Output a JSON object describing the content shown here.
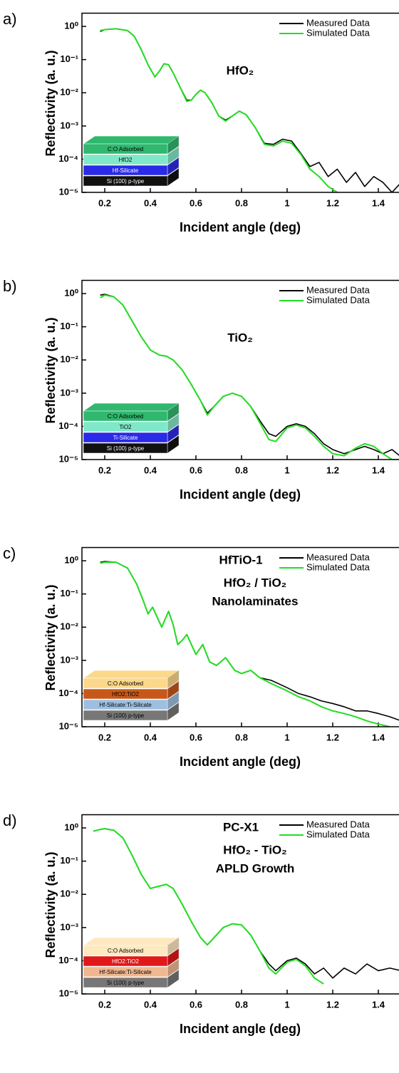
{
  "chart_data": [
    {
      "type": "line",
      "panel_label": "a)",
      "x_label": "Incident angle (deg)",
      "y_label": "Reflectivity (a. u.)",
      "log_y": true,
      "legend": "upper right",
      "annotations": [
        "HfO₂"
      ],
      "xlim": [
        0.1,
        1.5
      ],
      "xticks": [
        0.2,
        0.4,
        0.6,
        0.8,
        1.0,
        1.2,
        1.4
      ],
      "ylim": [
        1e-05,
        2.5
      ],
      "yticks": [
        {
          "value": 1,
          "label": "10⁰"
        },
        {
          "value": 0.1,
          "label": "10⁻¹"
        },
        {
          "value": 0.01,
          "label": "10⁻²"
        },
        {
          "value": 0.001,
          "label": "10⁻³"
        },
        {
          "value": 0.0001,
          "label": "10⁻⁴"
        },
        {
          "value": 1e-05,
          "label": "10⁻⁵"
        }
      ],
      "x": [
        0.18,
        0.2,
        0.25,
        0.3,
        0.33,
        0.36,
        0.39,
        0.42,
        0.44,
        0.46,
        0.48,
        0.5,
        0.53,
        0.56,
        0.58,
        0.6,
        0.62,
        0.64,
        0.67,
        0.7,
        0.73,
        0.76,
        0.79,
        0.82,
        0.86,
        0.9,
        0.94,
        0.98,
        1.02,
        1.06,
        1.1,
        1.14,
        1.18,
        1.22,
        1.26,
        1.3,
        1.34,
        1.38,
        1.42,
        1.46,
        1.5
      ],
      "series": [
        {
          "name": "Measured Data",
          "color": "#000000",
          "values": [
            0.7,
            0.8,
            0.85,
            0.75,
            0.5,
            0.2,
            0.07,
            0.03,
            0.045,
            0.075,
            0.07,
            0.04,
            0.015,
            0.006,
            0.006,
            0.009,
            0.012,
            0.01,
            0.005,
            0.002,
            0.0015,
            0.002,
            0.0028,
            0.0022,
            0.0009,
            0.0003,
            0.00028,
            0.0004,
            0.00035,
            0.00015,
            6e-05,
            8e-05,
            3e-05,
            5e-05,
            2e-05,
            4e-05,
            1.5e-05,
            3e-05,
            2e-05,
            1e-05,
            2e-05
          ]
        },
        {
          "name": "Simulated Data",
          "color": "#22dd22",
          "values": [
            0.75,
            0.8,
            0.85,
            0.75,
            0.5,
            0.2,
            0.07,
            0.03,
            0.045,
            0.075,
            0.07,
            0.04,
            0.015,
            0.0055,
            0.006,
            0.009,
            0.012,
            0.01,
            0.005,
            0.002,
            0.0014,
            0.002,
            0.0028,
            0.0022,
            0.0009,
            0.00028,
            0.00025,
            0.00035,
            0.0003,
            0.00014,
            5e-05,
            3e-05,
            1.5e-05,
            1e-05,
            null,
            null,
            null,
            null,
            null,
            null,
            null
          ]
        }
      ],
      "inset": [
        {
          "label": "C:O Adsorbed",
          "color": "#2fb86e"
        },
        {
          "label": "HfO2",
          "color": "#7fe8c8"
        },
        {
          "label": "Hf-Silicate",
          "color": "#2a2ae8"
        },
        {
          "label": "Si (100) p-type",
          "color": "#111111"
        }
      ]
    },
    {
      "type": "line",
      "panel_label": "b)",
      "x_label": "Incident angle (deg)",
      "y_label": "Reflectivity (a. u.)",
      "log_y": true,
      "legend": "upper right",
      "annotations": [
        "TiO₂"
      ],
      "xlim": [
        0.1,
        1.5
      ],
      "xticks": [
        0.2,
        0.4,
        0.6,
        0.8,
        1.0,
        1.2,
        1.4
      ],
      "ylim": [
        1e-05,
        2.5
      ],
      "yticks": [
        {
          "value": 1,
          "label": "10⁰"
        },
        {
          "value": 0.1,
          "label": "10⁻¹"
        },
        {
          "value": 0.01,
          "label": "10⁻²"
        },
        {
          "value": 0.001,
          "label": "10⁻³"
        },
        {
          "value": 0.0001,
          "label": "10⁻⁴"
        },
        {
          "value": 1e-05,
          "label": "10⁻⁵"
        }
      ],
      "x": [
        0.18,
        0.2,
        0.24,
        0.28,
        0.32,
        0.36,
        0.4,
        0.44,
        0.47,
        0.5,
        0.54,
        0.58,
        0.62,
        0.65,
        0.68,
        0.72,
        0.76,
        0.8,
        0.84,
        0.88,
        0.92,
        0.95,
        1.0,
        1.04,
        1.08,
        1.12,
        1.16,
        1.2,
        1.25,
        1.3,
        1.34,
        1.38,
        1.42,
        1.46,
        1.5
      ],
      "series": [
        {
          "name": "Measured Data",
          "color": "#000000",
          "values": [
            0.9,
            0.95,
            0.8,
            0.45,
            0.15,
            0.05,
            0.02,
            0.014,
            0.013,
            0.01,
            0.005,
            0.0018,
            0.0006,
            0.00025,
            0.0004,
            0.0008,
            0.001,
            0.0008,
            0.0004,
            0.00015,
            6e-05,
            5e-05,
            0.0001,
            0.00012,
            0.0001,
            6e-05,
            3e-05,
            2e-05,
            1.5e-05,
            2e-05,
            2.5e-05,
            2e-05,
            1.5e-05,
            2e-05,
            1.2e-05
          ]
        },
        {
          "name": "Simulated Data",
          "color": "#22dd22",
          "values": [
            0.75,
            0.9,
            0.8,
            0.45,
            0.15,
            0.05,
            0.02,
            0.014,
            0.013,
            0.01,
            0.005,
            0.0018,
            0.0006,
            0.00022,
            0.0004,
            0.0008,
            0.001,
            0.0008,
            0.0004,
            0.00013,
            4e-05,
            3.5e-05,
            9e-05,
            0.00011,
            9e-05,
            5e-05,
            2.5e-05,
            1.5e-05,
            1.3e-05,
            2.2e-05,
            3e-05,
            2.5e-05,
            1.5e-05,
            1e-05,
            1e-05
          ]
        }
      ],
      "inset": [
        {
          "label": "C:O Adsorbed",
          "color": "#2fb86e"
        },
        {
          "label": "TiO2",
          "color": "#7fe8c8"
        },
        {
          "label": "Ti-Silicate",
          "color": "#2a2ae8"
        },
        {
          "label": "Si (100) p-type",
          "color": "#111111"
        }
      ]
    },
    {
      "type": "line",
      "panel_label": "c)",
      "x_label": "Incident angle (deg)",
      "y_label": "Reflectivity (a. u.)",
      "log_y": true,
      "legend": "upper right",
      "annotations": [
        "HfTiO-1",
        "HfO₂ / TiO₂",
        "Nanolaminates"
      ],
      "xlim": [
        0.1,
        1.5
      ],
      "xticks": [
        0.2,
        0.4,
        0.6,
        0.8,
        1.0,
        1.2,
        1.4
      ],
      "ylim": [
        1e-05,
        2.5
      ],
      "yticks": [
        {
          "value": 1,
          "label": "10⁰"
        },
        {
          "value": 0.1,
          "label": "10⁻¹"
        },
        {
          "value": 0.01,
          "label": "10⁻²"
        },
        {
          "value": 0.001,
          "label": "10⁻³"
        },
        {
          "value": 0.0001,
          "label": "10⁻⁴"
        },
        {
          "value": 1e-05,
          "label": "10⁻⁵"
        }
      ],
      "x": [
        0.18,
        0.2,
        0.25,
        0.3,
        0.34,
        0.37,
        0.39,
        0.41,
        0.43,
        0.45,
        0.48,
        0.5,
        0.52,
        0.54,
        0.56,
        0.58,
        0.6,
        0.63,
        0.66,
        0.69,
        0.73,
        0.77,
        0.8,
        0.84,
        0.88,
        0.93,
        1.0,
        1.05,
        1.1,
        1.15,
        1.2,
        1.25,
        1.3,
        1.35,
        1.4,
        1.45,
        1.5
      ],
      "series": [
        {
          "name": "Measured Data",
          "color": "#000000",
          "values": [
            0.9,
            0.95,
            0.9,
            0.6,
            0.2,
            0.06,
            0.025,
            0.04,
            0.02,
            0.01,
            0.03,
            0.012,
            0.003,
            0.004,
            0.006,
            0.003,
            0.0015,
            0.003,
            0.0009,
            0.0007,
            0.0012,
            0.0005,
            0.0004,
            0.0005,
            0.0003,
            0.00025,
            0.00015,
            0.0001,
            8e-05,
            6e-05,
            5e-05,
            4e-05,
            3e-05,
            3e-05,
            2.5e-05,
            2e-05,
            1.5e-05
          ]
        },
        {
          "name": "Simulated Data",
          "color": "#22dd22",
          "values": [
            0.85,
            0.9,
            0.9,
            0.6,
            0.2,
            0.06,
            0.025,
            0.04,
            0.02,
            0.01,
            0.03,
            0.012,
            0.003,
            0.004,
            0.006,
            0.003,
            0.0015,
            0.003,
            0.0009,
            0.0007,
            0.0012,
            0.0005,
            0.0004,
            0.0005,
            0.0003,
            0.0002,
            0.00012,
            8e-05,
            6e-05,
            4e-05,
            3e-05,
            2.5e-05,
            2e-05,
            1.5e-05,
            1.2e-05,
            1e-05,
            null
          ]
        }
      ],
      "inset": [
        {
          "label": "C:O Adsorbed",
          "color": "#fcd88a"
        },
        {
          "label": "HfO2:TiO2",
          "color": "#c8581a"
        },
        {
          "label": "Hf-Silicate:Ti-Silicate",
          "color": "#9ec0e0"
        },
        {
          "label": "Si (100) p-type",
          "color": "#777777"
        }
      ]
    },
    {
      "type": "line",
      "panel_label": "d)",
      "x_label": "Incident angle (deg)",
      "y_label": "Reflectivity (a. u.)",
      "log_y": true,
      "legend": "upper right",
      "annotations": [
        "PC-X1",
        "HfO₂ - TiO₂",
        "APLD Growth"
      ],
      "xlim": [
        0.1,
        1.5
      ],
      "xticks": [
        0.2,
        0.4,
        0.6,
        0.8,
        1.0,
        1.2,
        1.4
      ],
      "ylim": [
        1e-05,
        2.5
      ],
      "yticks": [
        {
          "value": 1,
          "label": "10⁰"
        },
        {
          "value": 0.1,
          "label": "10⁻¹"
        },
        {
          "value": 0.01,
          "label": "10⁻²"
        },
        {
          "value": 0.001,
          "label": "10⁻³"
        },
        {
          "value": 0.0001,
          "label": "10⁻⁴"
        },
        {
          "value": 1e-05,
          "label": "10⁻⁵"
        }
      ],
      "x": [
        0.15,
        0.18,
        0.2,
        0.24,
        0.28,
        0.32,
        0.36,
        0.4,
        0.43,
        0.47,
        0.5,
        0.54,
        0.58,
        0.62,
        0.65,
        0.68,
        0.72,
        0.76,
        0.8,
        0.84,
        0.88,
        0.92,
        0.95,
        1.0,
        1.04,
        1.08,
        1.12,
        1.16,
        1.2,
        1.25,
        1.3,
        1.35,
        1.4,
        1.45,
        1.5
      ],
      "series": [
        {
          "name": "Measured Data",
          "color": "#000000",
          "values": [
            0.8,
            0.9,
            0.95,
            0.85,
            0.5,
            0.15,
            0.04,
            0.015,
            0.017,
            0.02,
            0.015,
            0.005,
            0.0015,
            0.0005,
            0.0003,
            0.0005,
            0.001,
            0.0013,
            0.0012,
            0.0006,
            0.0002,
            8e-05,
            5e-05,
            0.0001,
            0.00012,
            8e-05,
            4e-05,
            6e-05,
            3e-05,
            6e-05,
            4e-05,
            8e-05,
            5e-05,
            6e-05,
            5e-05
          ]
        },
        {
          "name": "Simulated Data",
          "color": "#22dd22",
          "values": [
            0.8,
            0.9,
            0.95,
            0.85,
            0.5,
            0.15,
            0.04,
            0.015,
            0.017,
            0.02,
            0.015,
            0.005,
            0.0015,
            0.0005,
            0.0003,
            0.0005,
            0.001,
            0.0013,
            0.0012,
            0.0006,
            0.0002,
            6e-05,
            4e-05,
            9e-05,
            0.00011,
            7e-05,
            3e-05,
            2e-05,
            null,
            null,
            null,
            null,
            null,
            null,
            null
          ]
        }
      ],
      "inset": [
        {
          "label": "C:O Adsorbed",
          "color": "#fde8c0"
        },
        {
          "label": "HfO2:TiO2",
          "color": "#e01818"
        },
        {
          "label": "Hf-Silicate:Ti-Silicate",
          "color": "#f0b890"
        },
        {
          "label": "Si (100) p-type",
          "color": "#777777"
        }
      ]
    }
  ]
}
